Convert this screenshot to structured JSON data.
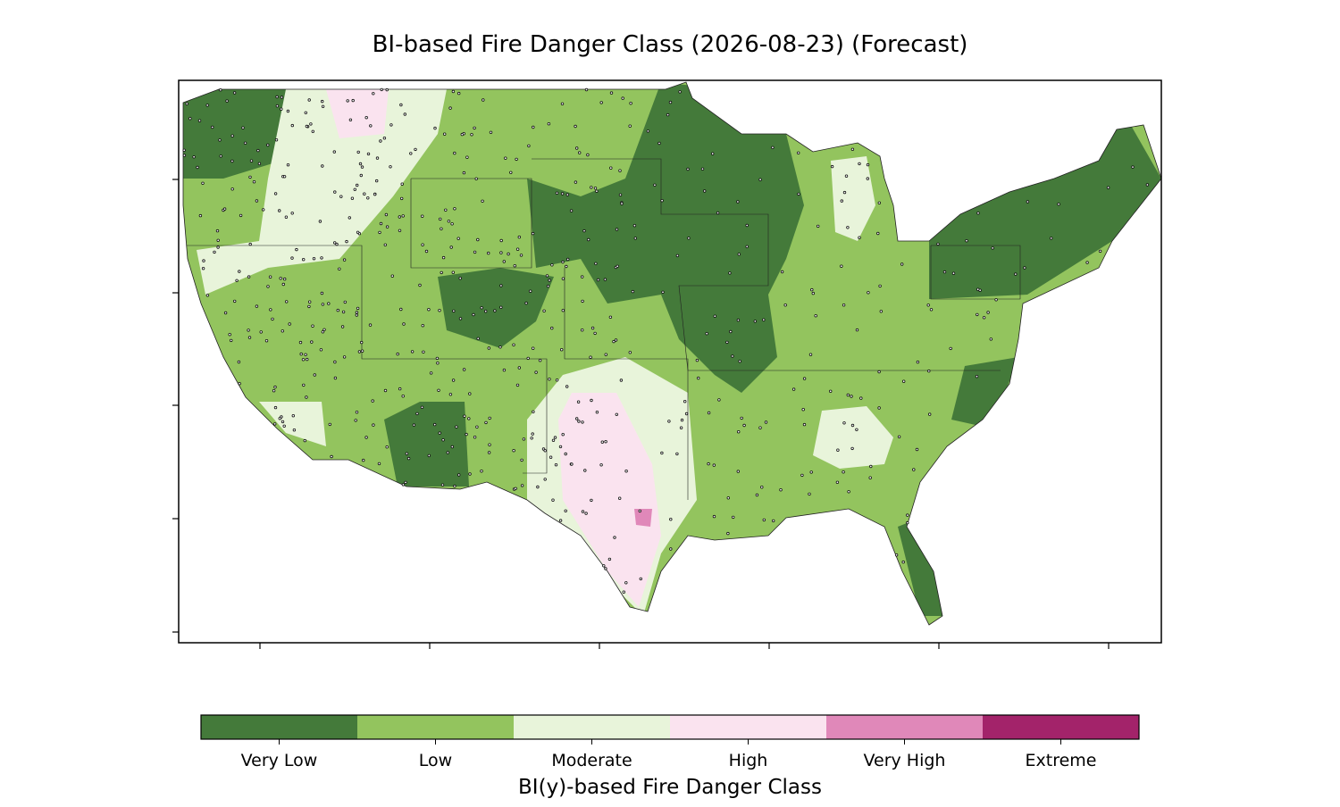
{
  "title": "BI-based Fire Danger Class (2026-08-23) (Forecast)",
  "colorbar": {
    "label": "BI(y)-based Fire Danger Class",
    "classes": [
      {
        "label": "Very Low",
        "color": "#447a3a"
      },
      {
        "label": "Low",
        "color": "#93c45e"
      },
      {
        "label": "Moderate",
        "color": "#e8f4da"
      },
      {
        "label": "High",
        "color": "#fae3ef"
      },
      {
        "label": "Very High",
        "color": "#e088b9"
      },
      {
        "label": "Extreme",
        "color": "#a3236a"
      }
    ]
  }
}
